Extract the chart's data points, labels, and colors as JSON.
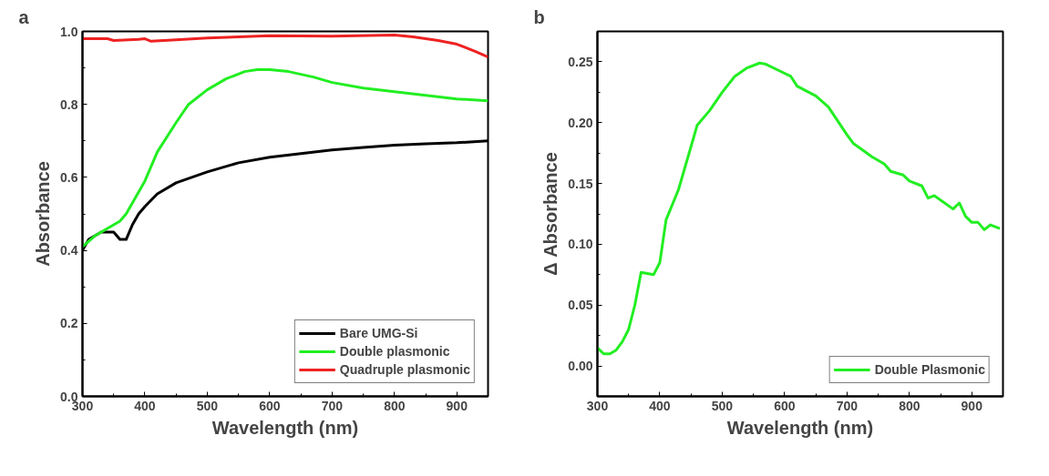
{
  "chart_data": [
    {
      "type": "line",
      "annotations": [
        "a"
      ],
      "xlabel": "Wavelength (nm)",
      "ylabel": "Absorbance",
      "xlim": [
        300,
        950
      ],
      "ylim": [
        0,
        1.0
      ],
      "xticks": [
        300,
        400,
        500,
        600,
        700,
        800,
        900
      ],
      "yticks": [
        {
          "value": 0,
          "label": "0.0"
        },
        0.2,
        0.4,
        0.6,
        0.8,
        {
          "value": 1.0,
          "label": "1.0"
        }
      ],
      "grid": false,
      "legend": "bottom right",
      "marker": "none",
      "line_style": "solid",
      "series": [
        {
          "name": "Bare UMG-Si",
          "color": "#000000",
          "x": [
            300,
            310,
            330,
            350,
            360,
            370,
            380,
            390,
            400,
            420,
            450,
            500,
            550,
            600,
            650,
            700,
            750,
            800,
            850,
            900,
            950
          ],
          "values": [
            0.4,
            0.43,
            0.45,
            0.45,
            0.43,
            0.43,
            0.47,
            0.5,
            0.52,
            0.555,
            0.585,
            0.615,
            0.64,
            0.655,
            0.665,
            0.675,
            0.682,
            0.688,
            0.692,
            0.695,
            0.7
          ]
        },
        {
          "name": "Double plasmonic",
          "color": "#22ee22",
          "x": [
            300,
            320,
            340,
            360,
            370,
            380,
            400,
            420,
            450,
            470,
            500,
            530,
            560,
            580,
            600,
            630,
            670,
            700,
            750,
            800,
            850,
            900,
            950
          ],
          "values": [
            0.41,
            0.44,
            0.46,
            0.48,
            0.5,
            0.53,
            0.59,
            0.67,
            0.75,
            0.8,
            0.84,
            0.87,
            0.89,
            0.895,
            0.895,
            0.89,
            0.875,
            0.86,
            0.845,
            0.835,
            0.825,
            0.815,
            0.81
          ]
        },
        {
          "name": "Quadruple plasmonic",
          "color": "#ee2222",
          "x": [
            300,
            340,
            350,
            390,
            400,
            410,
            450,
            500,
            550,
            600,
            700,
            800,
            830,
            870,
            900,
            930,
            950
          ],
          "values": [
            0.98,
            0.98,
            0.975,
            0.978,
            0.98,
            0.973,
            0.977,
            0.982,
            0.985,
            0.988,
            0.987,
            0.99,
            0.985,
            0.975,
            0.965,
            0.945,
            0.93
          ]
        }
      ]
    },
    {
      "type": "line",
      "annotations": [
        "b"
      ],
      "xlabel": "Wavelength (nm)",
      "ylabel": "Δ Absorbance",
      "xlim": [
        300,
        950
      ],
      "ylim": [
        -0.025,
        0.275
      ],
      "xticks": [
        300,
        400,
        500,
        600,
        700,
        800,
        900
      ],
      "yticks": [
        {
          "value": 0,
          "label": "0.00"
        },
        0.05,
        {
          "value": 0.1,
          "label": "0.10"
        },
        0.15,
        {
          "value": 0.2,
          "label": "0.20"
        },
        0.25
      ],
      "grid": false,
      "legend": "bottom right",
      "marker": "none",
      "line_style": "solid",
      "series": [
        {
          "name": "Double Plasmonic",
          "color": "#22ee22",
          "x": [
            300,
            310,
            320,
            330,
            340,
            350,
            360,
            370,
            380,
            390,
            400,
            410,
            430,
            460,
            480,
            500,
            520,
            540,
            560,
            570,
            590,
            610,
            620,
            650,
            670,
            700,
            710,
            740,
            760,
            770,
            790,
            800,
            820,
            830,
            840,
            870,
            880,
            890,
            900,
            910,
            920,
            930,
            945
          ],
          "values": [
            0.015,
            0.01,
            0.01,
            0.013,
            0.02,
            0.03,
            0.05,
            0.077,
            0.076,
            0.075,
            0.085,
            0.12,
            0.145,
            0.198,
            0.21,
            0.225,
            0.238,
            0.245,
            0.249,
            0.248,
            0.243,
            0.238,
            0.23,
            0.222,
            0.213,
            0.19,
            0.183,
            0.172,
            0.166,
            0.16,
            0.157,
            0.152,
            0.148,
            0.138,
            0.14,
            0.129,
            0.134,
            0.123,
            0.118,
            0.118,
            0.112,
            0.116,
            0.113
          ]
        }
      ]
    }
  ]
}
